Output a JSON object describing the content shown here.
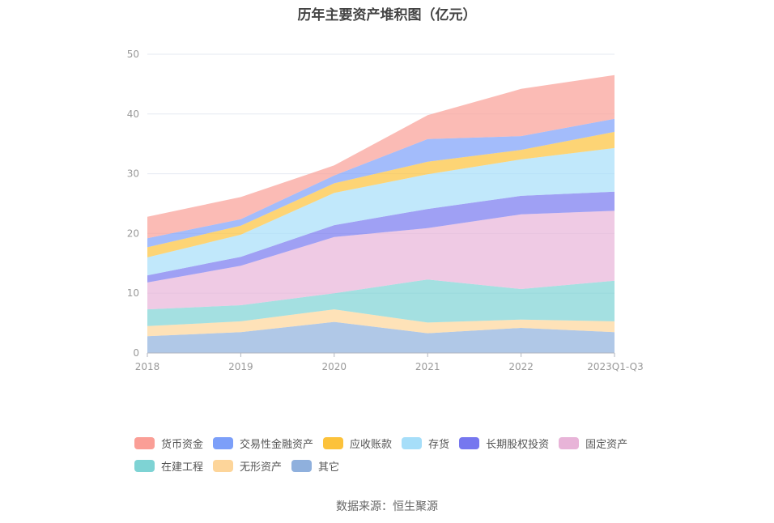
{
  "chart_data": {
    "type": "area",
    "stacked": true,
    "title": "历年主要资产堆积图（亿元）",
    "xlabel": "",
    "ylabel": "",
    "ylim": [
      0,
      50
    ],
    "yticks": [
      0,
      10,
      20,
      30,
      40,
      50
    ],
    "grid": true,
    "legend_position": "bottom",
    "categories": [
      "2018",
      "2019",
      "2020",
      "2021",
      "2022",
      "2023Q1-Q3"
    ],
    "series": [
      {
        "name": "其它",
        "color": "#8fb0dd",
        "values": [
          2.8,
          3.5,
          5.2,
          3.3,
          4.2,
          3.5
        ]
      },
      {
        "name": "无形资产",
        "color": "#fdd59a",
        "values": [
          1.7,
          1.8,
          2.1,
          1.8,
          1.4,
          1.8
        ]
      },
      {
        "name": "在建工程",
        "color": "#7ed3d4",
        "values": [
          2.8,
          2.7,
          2.7,
          7.2,
          5.1,
          6.8
        ]
      },
      {
        "name": "固定资产",
        "color": "#e8b4d8",
        "values": [
          4.5,
          6.6,
          9.4,
          8.6,
          12.5,
          11.7
        ]
      },
      {
        "name": "长期股权投资",
        "color": "#7677ef",
        "values": [
          1.2,
          1.5,
          2.0,
          3.2,
          3.1,
          3.2
        ]
      },
      {
        "name": "存货",
        "color": "#a6def9",
        "values": [
          3.0,
          3.7,
          5.4,
          5.8,
          6.1,
          7.3
        ]
      },
      {
        "name": "应收账款",
        "color": "#fcc23b",
        "values": [
          1.7,
          1.5,
          1.6,
          2.1,
          1.6,
          2.7
        ]
      },
      {
        "name": "交易性金融资产",
        "color": "#7c9ff9",
        "values": [
          1.5,
          1.1,
          1.3,
          3.8,
          2.3,
          2.2
        ]
      },
      {
        "name": "货币资金",
        "color": "#fa9e96",
        "values": [
          3.6,
          3.7,
          1.7,
          4.0,
          7.9,
          7.3
        ]
      }
    ],
    "legend_order": [
      "货币资金",
      "交易性金融资产",
      "应收账款",
      "存货",
      "长期股权投资",
      "固定资产",
      "在建工程",
      "无形资产",
      "其它"
    ]
  },
  "source": "数据来源：恒生聚源"
}
